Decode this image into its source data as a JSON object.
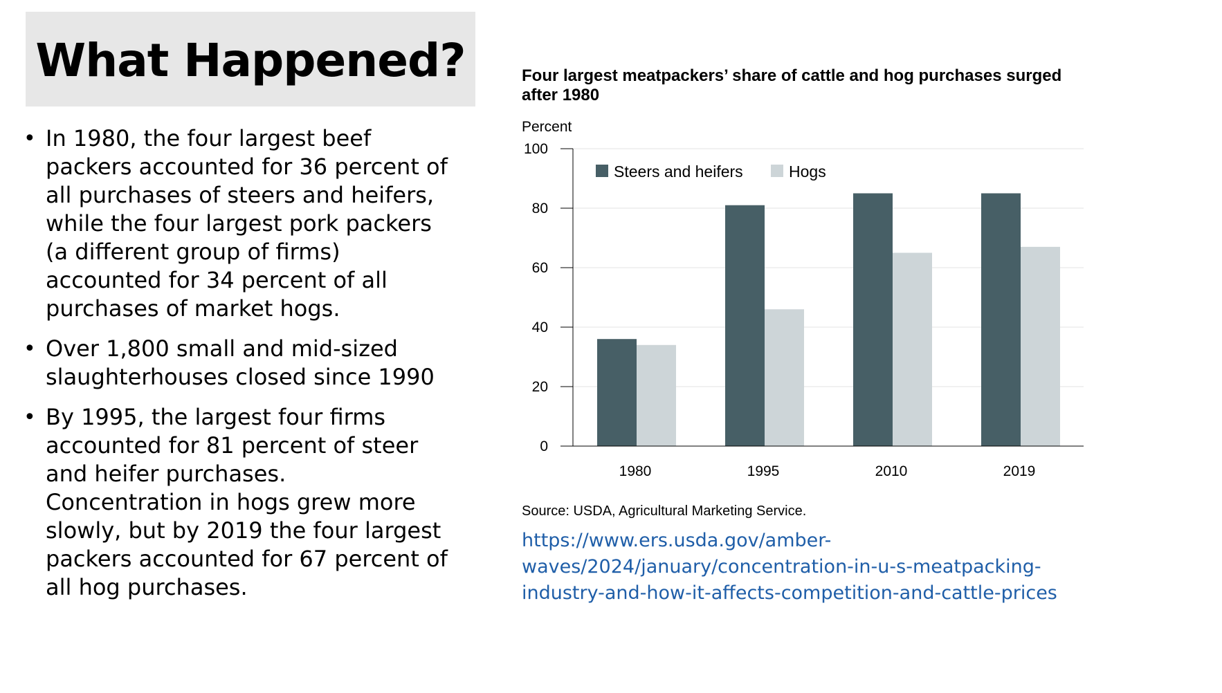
{
  "slide": {
    "title": "What Happened?",
    "bullets": [
      {
        "lines": [
          "In 1980, the four largest beef",
          "packers accounted for 36 percent of",
          "all purchases of steers and heifers,",
          "while the four largest pork packers",
          "(a different group of firms)",
          "accounted for 34 percent of all",
          "purchases of market hogs."
        ]
      },
      {
        "lines": [
          "Over 1,800 small and mid-sized",
          "slaughterhouses closed since 1990"
        ]
      },
      {
        "lines": [
          "By 1995, the largest four firms",
          "accounted for 81 percent of steer",
          "and heifer purchases.",
          "Concentration in hogs grew more",
          "slowly, but by 2019 the four largest",
          "packers accounted for 67 percent of",
          "all hog purchases."
        ]
      }
    ],
    "source": "Source: USDA, Agricultural Marketing Service.",
    "link_lines": [
      "https://www.ers.usda.gov/amber-",
      "waves/2024/january/concentration-in-u-s-meatpacking-",
      "industry-and-how-it-affects-competition-and-cattle-prices"
    ]
  },
  "chart_data": {
    "type": "bar",
    "title": "Four largest meatpackers’ share of cattle and hog purchases surged after 1980",
    "title_lines": [
      "Four largest meatpackers’ share of cattle and hog purchases surged",
      "after 1980"
    ],
    "ylabel": "Percent",
    "xlabel": "",
    "categories": [
      "1980",
      "1995",
      "2010",
      "2019"
    ],
    "series": [
      {
        "name": "Steers and heifers",
        "values": [
          36,
          81,
          85,
          85
        ],
        "color": "#475f66"
      },
      {
        "name": "Hogs",
        "values": [
          34,
          46,
          65,
          67
        ],
        "color": "#cdd5d8"
      }
    ],
    "ylim": [
      0,
      100
    ],
    "yticks": [
      0,
      20,
      40,
      60,
      80,
      100
    ],
    "grid": true,
    "legend": "top-left"
  }
}
